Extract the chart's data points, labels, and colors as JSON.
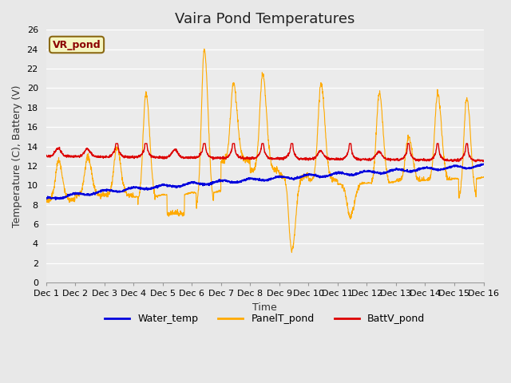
{
  "title": "Vaira Pond Temperatures",
  "ylabel": "Temperature (C), Battery (V)",
  "xlabel": "Time",
  "annotation": "VR_pond",
  "ylim": [
    0,
    26
  ],
  "yticks": [
    0,
    2,
    4,
    6,
    8,
    10,
    12,
    14,
    16,
    18,
    20,
    22,
    24,
    26
  ],
  "xtick_labels": [
    "Dec 1",
    "Dec 2",
    "Dec 3",
    "Dec 4",
    "Dec 5",
    "Dec 6",
    "Dec 7",
    "Dec 8",
    "Dec 9",
    "Dec 10",
    "Dec 11",
    "Dec 12",
    "Dec 13",
    "Dec 14",
    "Dec 15",
    "Dec 16"
  ],
  "water_color": "#0000dd",
  "panel_color": "#ffaa00",
  "batt_color": "#dd0000",
  "fig_bg_color": "#e8e8e8",
  "plot_bg_color": "#ebebeb",
  "grid_color": "#ffffff",
  "legend_labels": [
    "Water_temp",
    "PanelT_pond",
    "BattV_pond"
  ],
  "title_fontsize": 13,
  "axis_fontsize": 9,
  "tick_fontsize": 8,
  "daily_peaks": [
    12.5,
    13.0,
    14.0,
    19.5,
    7.2,
    24.0,
    20.5,
    21.5,
    3.3,
    20.5,
    6.7,
    19.5,
    15.0,
    19.5,
    19.0,
    9.0
  ],
  "night_mins": [
    8.5,
    9.0,
    9.0,
    8.2,
    7.0,
    7.5,
    12.5,
    11.5,
    11.0,
    10.5,
    10.0,
    10.0,
    10.5,
    10.5,
    8.5,
    8.0
  ]
}
